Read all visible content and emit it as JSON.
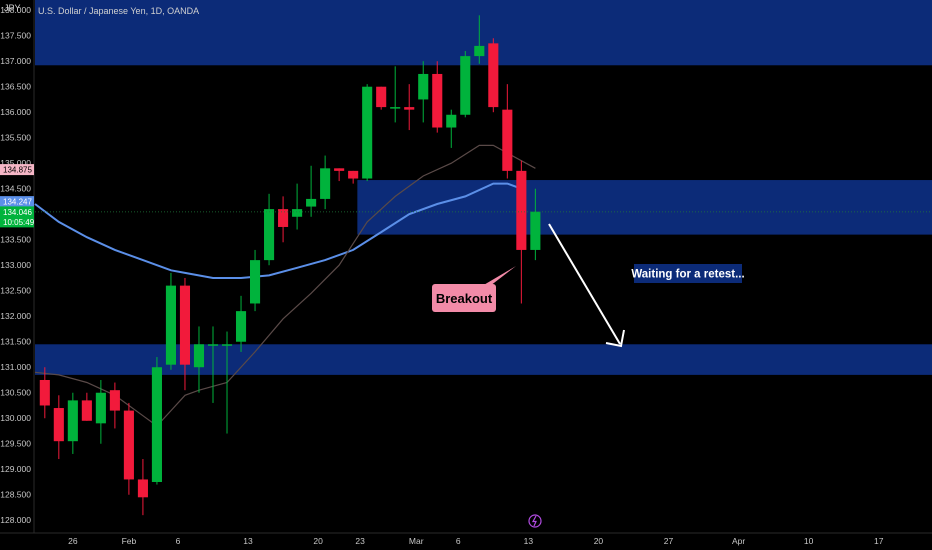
{
  "header": {
    "axis_corner_label": "JPY",
    "symbol_title": "U.S. Dollar / Japanese Yen, 1D, OANDA"
  },
  "colors": {
    "background": "#000000",
    "up": "#00b33c",
    "down": "#f21a3b",
    "zone": "#0c2b78",
    "ma_slow": "#5b8fe8",
    "ma_fast": "#5a4a48",
    "callout": "#f28ba8",
    "note_bg": "#0c2b78"
  },
  "price_tags": [
    {
      "label": "134.875",
      "value": 134.875,
      "bg": "#f5b6c6",
      "fg": "#000000"
    },
    {
      "label": "134.247",
      "value": 134.247,
      "bg": "#5b8fe8",
      "fg": "#ffffff"
    },
    {
      "label": "134.046",
      "value": 134.046,
      "bg": "#00b33c",
      "fg": "#ffffff"
    },
    {
      "label": "10:05:49",
      "value": 133.86,
      "bg": "#00b33c",
      "fg": "#ffffff"
    }
  ],
  "annotations": {
    "breakout": "Breakout",
    "retest_note": "Waiting for a retest..."
  },
  "chart_data": {
    "type": "candlestick",
    "title": "U.S. Dollar / Japanese Yen, 1D, OANDA",
    "ylabel": "JPY",
    "ylim": [
      127.75,
      138.2
    ],
    "y_ticks": [
      128.0,
      128.5,
      129.0,
      129.5,
      130.0,
      130.5,
      131.0,
      131.5,
      132.0,
      132.5,
      133.0,
      133.5,
      134.0,
      134.5,
      135.0,
      135.5,
      136.0,
      136.5,
      137.0,
      137.5,
      138.0
    ],
    "y_tick_labels": [
      "128.000",
      "128.500",
      "129.000",
      "129.500",
      "130.000",
      "130.500",
      "131.000",
      "131.500",
      "132.000",
      "132.500",
      "133.000",
      "133.500",
      "134.000",
      "134.500",
      "135.000",
      "135.500",
      "136.000",
      "136.500",
      "137.000",
      "137.500",
      "138.000"
    ],
    "x_tick_labels": [
      {
        "label": "26",
        "index": 2
      },
      {
        "label": "Feb",
        "index": 6
      },
      {
        "label": "6",
        "index": 9.5
      },
      {
        "label": "13",
        "index": 14.5
      },
      {
        "label": "20",
        "index": 19.5
      },
      {
        "label": "23",
        "index": 22.5
      },
      {
        "label": "Mar",
        "index": 26.5
      },
      {
        "label": "6",
        "index": 29.5
      },
      {
        "label": "13",
        "index": 34.5
      },
      {
        "label": "20",
        "index": 39.5
      },
      {
        "label": "27",
        "index": 44.5
      },
      {
        "label": "Apr",
        "index": 49.5
      },
      {
        "label": "10",
        "index": 54.5
      },
      {
        "label": "17",
        "index": 59.5
      }
    ],
    "x_index_span": [
      -0.7,
      63.3
    ],
    "candles": [
      {
        "i": 0,
        "o": 130.75,
        "h": 131.0,
        "l": 130.0,
        "c": 130.25
      },
      {
        "i": 1,
        "o": 130.2,
        "h": 130.45,
        "l": 129.2,
        "c": 129.55
      },
      {
        "i": 2,
        "o": 129.55,
        "h": 130.5,
        "l": 129.3,
        "c": 130.35
      },
      {
        "i": 3,
        "o": 130.35,
        "h": 130.5,
        "l": 129.95,
        "c": 129.95
      },
      {
        "i": 4,
        "o": 129.9,
        "h": 130.75,
        "l": 129.5,
        "c": 130.5
      },
      {
        "i": 5,
        "o": 130.55,
        "h": 130.7,
        "l": 129.8,
        "c": 130.15
      },
      {
        "i": 6,
        "o": 130.15,
        "h": 130.3,
        "l": 128.5,
        "c": 128.8
      },
      {
        "i": 7,
        "o": 128.8,
        "h": 129.2,
        "l": 128.1,
        "c": 128.45
      },
      {
        "i": 8,
        "o": 128.75,
        "h": 131.2,
        "l": 128.7,
        "c": 131.0
      },
      {
        "i": 9,
        "o": 131.05,
        "h": 132.85,
        "l": 130.95,
        "c": 132.6
      },
      {
        "i": 10,
        "o": 132.6,
        "h": 132.75,
        "l": 130.55,
        "c": 131.05
      },
      {
        "i": 11,
        "o": 131.0,
        "h": 131.8,
        "l": 130.5,
        "c": 131.45
      },
      {
        "i": 12,
        "o": 131.45,
        "h": 131.8,
        "l": 130.3,
        "c": 131.45
      },
      {
        "i": 13,
        "o": 131.45,
        "h": 131.7,
        "l": 129.7,
        "c": 131.45
      },
      {
        "i": 14,
        "o": 131.5,
        "h": 132.4,
        "l": 131.3,
        "c": 132.1
      },
      {
        "i": 15,
        "o": 132.25,
        "h": 133.3,
        "l": 132.1,
        "c": 133.1
      },
      {
        "i": 16,
        "o": 133.1,
        "h": 134.4,
        "l": 133.0,
        "c": 134.1
      },
      {
        "i": 17,
        "o": 134.1,
        "h": 134.35,
        "l": 133.45,
        "c": 133.75
      },
      {
        "i": 18,
        "o": 133.95,
        "h": 134.6,
        "l": 133.7,
        "c": 134.1
      },
      {
        "i": 19,
        "o": 134.15,
        "h": 134.95,
        "l": 133.95,
        "c": 134.3
      },
      {
        "i": 20,
        "o": 134.3,
        "h": 135.15,
        "l": 134.1,
        "c": 134.9
      },
      {
        "i": 21,
        "o": 134.9,
        "h": 134.9,
        "l": 134.65,
        "c": 134.85
      },
      {
        "i": 22,
        "o": 134.85,
        "h": 134.85,
        "l": 134.6,
        "c": 134.7
      },
      {
        "i": 23,
        "o": 134.7,
        "h": 136.55,
        "l": 134.65,
        "c": 136.5
      },
      {
        "i": 24,
        "o": 136.5,
        "h": 136.5,
        "l": 136.05,
        "c": 136.1
      },
      {
        "i": 25,
        "o": 136.1,
        "h": 136.9,
        "l": 135.8,
        "c": 136.1
      },
      {
        "i": 26,
        "o": 136.1,
        "h": 136.55,
        "l": 135.65,
        "c": 136.05
      },
      {
        "i": 27,
        "o": 136.25,
        "h": 137.0,
        "l": 135.8,
        "c": 136.75
      },
      {
        "i": 28,
        "o": 136.75,
        "h": 137.0,
        "l": 135.6,
        "c": 135.7
      },
      {
        "i": 29,
        "o": 135.7,
        "h": 136.05,
        "l": 135.3,
        "c": 135.95
      },
      {
        "i": 30,
        "o": 135.95,
        "h": 137.2,
        "l": 135.9,
        "c": 137.1
      },
      {
        "i": 31,
        "o": 137.1,
        "h": 137.9,
        "l": 136.95,
        "c": 137.3
      },
      {
        "i": 32,
        "o": 137.35,
        "h": 137.45,
        "l": 136.0,
        "c": 136.1
      },
      {
        "i": 33,
        "o": 136.05,
        "h": 136.55,
        "l": 134.7,
        "c": 134.85
      },
      {
        "i": 34,
        "o": 134.85,
        "h": 135.05,
        "l": 132.25,
        "c": 133.3
      },
      {
        "i": 35,
        "o": 133.3,
        "h": 134.5,
        "l": 133.1,
        "c": 134.05
      }
    ],
    "series": [
      {
        "name": "",
        "type": "line",
        "color": "#5b8fe8",
        "values": [
          [
            -0.7,
            134.2
          ],
          [
            1,
            133.85
          ],
          [
            3,
            133.55
          ],
          [
            5,
            133.3
          ],
          [
            7,
            133.1
          ],
          [
            9,
            132.9
          ],
          [
            10,
            132.85
          ],
          [
            12,
            132.75
          ],
          [
            14,
            132.75
          ],
          [
            16,
            132.8
          ],
          [
            18,
            132.95
          ],
          [
            20,
            133.1
          ],
          [
            22,
            133.3
          ],
          [
            24,
            133.65
          ],
          [
            26,
            134.0
          ],
          [
            28,
            134.2
          ],
          [
            30,
            134.35
          ],
          [
            32,
            134.6
          ],
          [
            33,
            134.6
          ],
          [
            34,
            134.5
          ]
        ]
      },
      {
        "name": "",
        "type": "line",
        "color": "#5a4a48",
        "values": [
          [
            -0.7,
            130.9
          ],
          [
            1,
            130.85
          ],
          [
            3,
            130.7
          ],
          [
            5,
            130.45
          ],
          [
            7,
            130.05
          ],
          [
            8,
            129.85
          ],
          [
            9,
            130.15
          ],
          [
            10,
            130.45
          ],
          [
            11,
            130.55
          ],
          [
            13,
            130.7
          ],
          [
            15,
            131.3
          ],
          [
            17,
            131.95
          ],
          [
            19,
            132.45
          ],
          [
            21,
            133.0
          ],
          [
            23,
            133.85
          ],
          [
            25,
            134.35
          ],
          [
            27,
            134.75
          ],
          [
            29,
            135.0
          ],
          [
            31,
            135.35
          ],
          [
            32,
            135.35
          ],
          [
            33,
            135.2
          ],
          [
            35,
            134.9
          ]
        ]
      }
    ],
    "zones": [
      {
        "low": 136.92,
        "high": 138.2,
        "x_start": -0.7
      },
      {
        "low": 133.6,
        "high": 134.67,
        "x_start": 22.3
      },
      {
        "low": 130.85,
        "high": 131.45,
        "x_start": -0.7
      }
    ],
    "grid": false,
    "last_price": 134.046
  }
}
